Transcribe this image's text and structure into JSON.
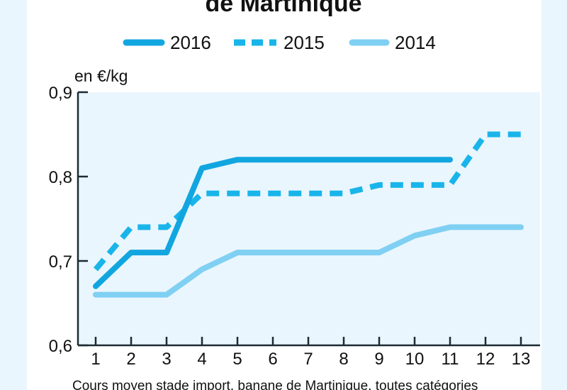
{
  "title": "de Martinique",
  "unit_label": "en €/kg",
  "caption": "Cours moyen stade import, banane de Martinique, toutes catégories",
  "chart_data": {
    "type": "line",
    "title": "de Martinique",
    "ylabel": "en €/kg",
    "xlabel": "",
    "x": [
      1,
      2,
      3,
      4,
      5,
      6,
      7,
      8,
      9,
      10,
      11,
      12,
      13
    ],
    "ylim": [
      0.6,
      0.9
    ],
    "yticks": [
      "0,6",
      "0,7",
      "0,8",
      "0,9"
    ],
    "ytick_values": [
      0.6,
      0.7,
      0.8,
      0.9
    ],
    "xticks": [
      "1",
      "2",
      "3",
      "4",
      "5",
      "6",
      "7",
      "8",
      "9",
      "10",
      "11",
      "12",
      "13"
    ],
    "grid": false,
    "legend_position": "top",
    "series": [
      {
        "name": "2016",
        "style": "solid-thick",
        "color": "#12a6e0",
        "values": [
          0.67,
          0.71,
          0.71,
          0.81,
          0.82,
          0.82,
          0.82,
          0.82,
          0.82,
          0.82,
          0.82,
          null,
          null
        ]
      },
      {
        "name": "2015",
        "style": "dashed",
        "color": "#19b5ea",
        "values": [
          0.69,
          0.74,
          0.74,
          0.78,
          0.78,
          0.78,
          0.78,
          0.78,
          0.79,
          0.79,
          0.79,
          0.85,
          0.85
        ]
      },
      {
        "name": "2014",
        "style": "solid-light",
        "color": "#7fd0f3",
        "values": [
          0.66,
          0.66,
          0.66,
          0.69,
          0.71,
          0.71,
          0.71,
          0.71,
          0.71,
          0.73,
          0.74,
          0.74,
          0.74
        ]
      }
    ]
  }
}
